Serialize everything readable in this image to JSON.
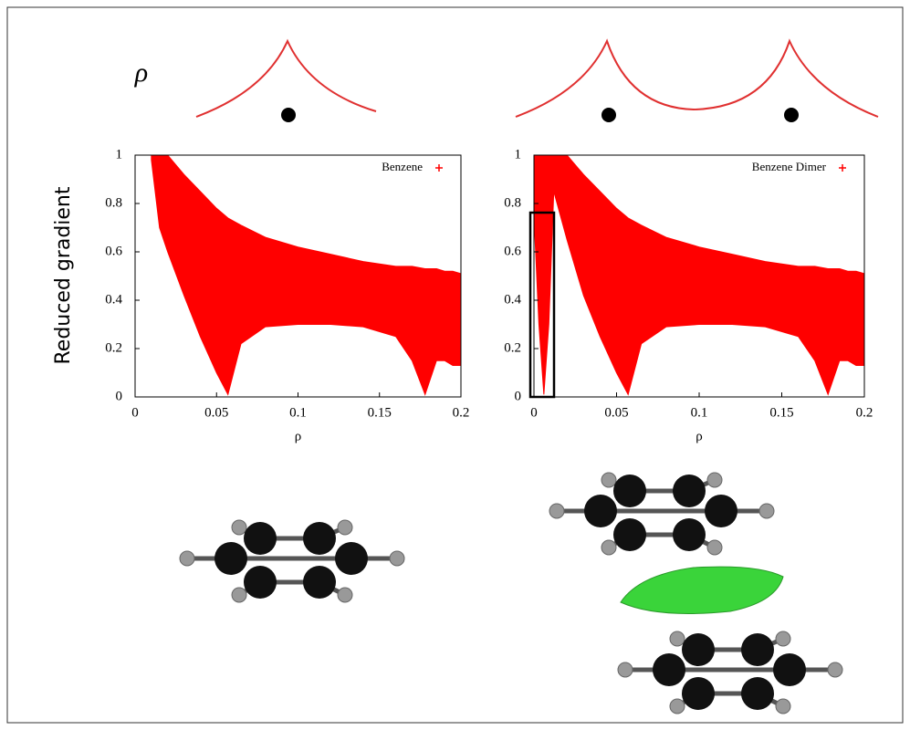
{
  "chart_data": [
    {
      "type": "range_area",
      "y_label": "Reduced gradient",
      "x_label": "ρ",
      "x": [
        0.01,
        0.015,
        0.02,
        0.03,
        0.04,
        0.05,
        0.057,
        0.065,
        0.08,
        0.1,
        0.12,
        0.14,
        0.16,
        0.17,
        0.178,
        0.185,
        0.19,
        0.195,
        0.2
      ],
      "series": [
        {
          "name": "Benzene",
          "color": "#ff0000",
          "high": [
            1,
            1,
            1,
            0.92,
            0.85,
            0.78,
            0.74,
            0.71,
            0.66,
            0.62,
            0.59,
            0.56,
            0.54,
            0.54,
            0.53,
            0.53,
            0.52,
            0.52,
            0.51
          ],
          "low": [
            0.98,
            0.7,
            0.6,
            0.42,
            0.25,
            0.1,
            0.01,
            0.22,
            0.29,
            0.3,
            0.3,
            0.29,
            0.25,
            0.15,
            0.01,
            0.15,
            0.15,
            0.13,
            0.13
          ]
        }
      ],
      "xlim": [
        0,
        0.2
      ],
      "ylim": [
        0,
        1
      ],
      "xticks": [
        0,
        0.05,
        0.1,
        0.15,
        0.2
      ],
      "yticks": [
        0,
        0.2,
        0.4,
        0.6,
        0.8,
        1
      ]
    },
    {
      "type": "range_area",
      "x_label": "ρ",
      "x": [
        0,
        0.003,
        0.006,
        0.009,
        0.012,
        0.02,
        0.03,
        0.04,
        0.05,
        0.057,
        0.065,
        0.08,
        0.1,
        0.12,
        0.14,
        0.16,
        0.17,
        0.178,
        0.185,
        0.19,
        0.195,
        0.2
      ],
      "series": [
        {
          "name": "Benzene Dimer",
          "color": "#ff0000",
          "high": [
            1,
            1,
            1,
            1,
            1,
            1,
            0.92,
            0.85,
            0.78,
            0.74,
            0.71,
            0.66,
            0.62,
            0.59,
            0.56,
            0.54,
            0.54,
            0.53,
            0.53,
            0.52,
            0.52,
            0.51
          ],
          "low": [
            0.75,
            0.3,
            0.01,
            0.3,
            0.85,
            0.65,
            0.42,
            0.25,
            0.1,
            0.01,
            0.22,
            0.29,
            0.3,
            0.3,
            0.29,
            0.25,
            0.15,
            0.01,
            0.15,
            0.15,
            0.13,
            0.13
          ]
        }
      ],
      "xlim": [
        0,
        0.2
      ],
      "ylim": [
        0,
        1
      ],
      "xticks": [
        0,
        0.05,
        0.1,
        0.15,
        0.2
      ],
      "yticks": [
        0,
        0.2,
        0.4,
        0.6,
        0.8,
        1
      ]
    }
  ],
  "density_label": "ρ"
}
